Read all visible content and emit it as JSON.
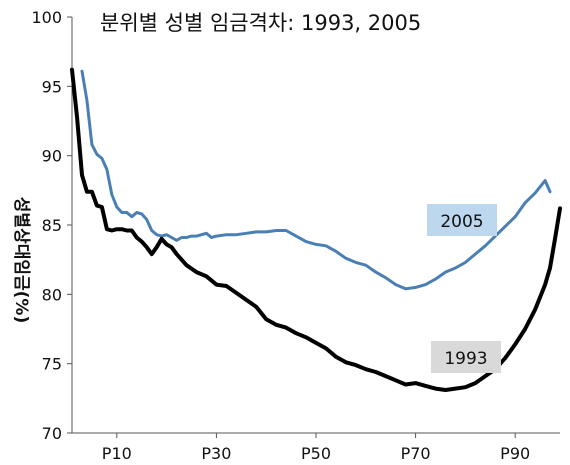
{
  "chart_data": {
    "type": "line",
    "title": "분위별 성별 임금격차: 1993, 2005",
    "xlabel": "",
    "ylabel": "성별상대임금(%)",
    "xlim": [
      1,
      99
    ],
    "ylim": [
      70,
      100
    ],
    "x_ticks": [
      10,
      30,
      50,
      70,
      90
    ],
    "x_tick_labels": [
      "P10",
      "P30",
      "P50",
      "P70",
      "P90"
    ],
    "y_ticks": [
      70,
      75,
      80,
      85,
      90,
      95,
      100
    ],
    "y_tick_labels": [
      "70",
      "75",
      "80",
      "85",
      "90",
      "95",
      "100"
    ],
    "grid": false,
    "series": [
      {
        "name": "2005",
        "color": "#4a7fb5",
        "label_box_color": "#bdd7ee",
        "x": [
          3,
          4,
          5,
          6,
          7,
          8,
          9,
          10,
          11,
          12,
          13,
          14,
          15,
          16,
          17,
          18,
          19,
          20,
          21,
          22,
          23,
          24,
          25,
          26,
          27,
          28,
          29,
          30,
          32,
          34,
          36,
          38,
          40,
          42,
          44,
          46,
          48,
          50,
          52,
          54,
          56,
          58,
          60,
          62,
          64,
          66,
          68,
          70,
          72,
          74,
          76,
          78,
          80,
          82,
          84,
          86,
          88,
          90,
          92,
          94,
          96,
          97
        ],
        "values": [
          96.1,
          94.0,
          90.8,
          90.1,
          89.8,
          89.0,
          87.2,
          86.3,
          85.9,
          85.9,
          85.6,
          85.9,
          85.8,
          85.4,
          84.6,
          84.3,
          84.2,
          84.3,
          84.1,
          83.9,
          84.1,
          84.1,
          84.2,
          84.2,
          84.3,
          84.4,
          84.1,
          84.2,
          84.3,
          84.3,
          84.4,
          84.5,
          84.5,
          84.6,
          84.6,
          84.2,
          83.8,
          83.6,
          83.5,
          83.1,
          82.6,
          82.3,
          82.1,
          81.6,
          81.2,
          80.7,
          80.4,
          80.5,
          80.7,
          81.1,
          81.6,
          81.9,
          82.3,
          82.9,
          83.5,
          84.2,
          84.9,
          85.6,
          86.6,
          87.3,
          88.2,
          87.4
        ]
      },
      {
        "name": "1993",
        "color": "#000000",
        "label_box_color": "#d9d9d9",
        "x": [
          1,
          2,
          3,
          4,
          5,
          6,
          7,
          8,
          9,
          10,
          11,
          12,
          13,
          14,
          15,
          16,
          17,
          18,
          19,
          20,
          21,
          22,
          24,
          26,
          28,
          30,
          32,
          34,
          36,
          38,
          40,
          42,
          44,
          46,
          48,
          50,
          52,
          54,
          56,
          58,
          60,
          62,
          64,
          66,
          68,
          70,
          72,
          74,
          76,
          78,
          80,
          82,
          84,
          86,
          88,
          90,
          92,
          94,
          95,
          96,
          97,
          98,
          99
        ],
        "values": [
          96.2,
          92.8,
          88.6,
          87.4,
          87.4,
          86.4,
          86.3,
          84.7,
          84.6,
          84.7,
          84.7,
          84.6,
          84.6,
          84.1,
          83.8,
          83.4,
          82.9,
          83.4,
          84.0,
          83.6,
          83.4,
          82.9,
          82.1,
          81.6,
          81.3,
          80.7,
          80.6,
          80.1,
          79.6,
          79.1,
          78.2,
          77.8,
          77.6,
          77.2,
          76.9,
          76.5,
          76.1,
          75.5,
          75.1,
          74.9,
          74.6,
          74.4,
          74.1,
          73.8,
          73.5,
          73.6,
          73.4,
          73.2,
          73.1,
          73.2,
          73.3,
          73.6,
          74.1,
          74.6,
          75.4,
          76.4,
          77.5,
          78.9,
          79.8,
          80.7,
          81.9,
          84.0,
          86.2
        ]
      }
    ]
  }
}
